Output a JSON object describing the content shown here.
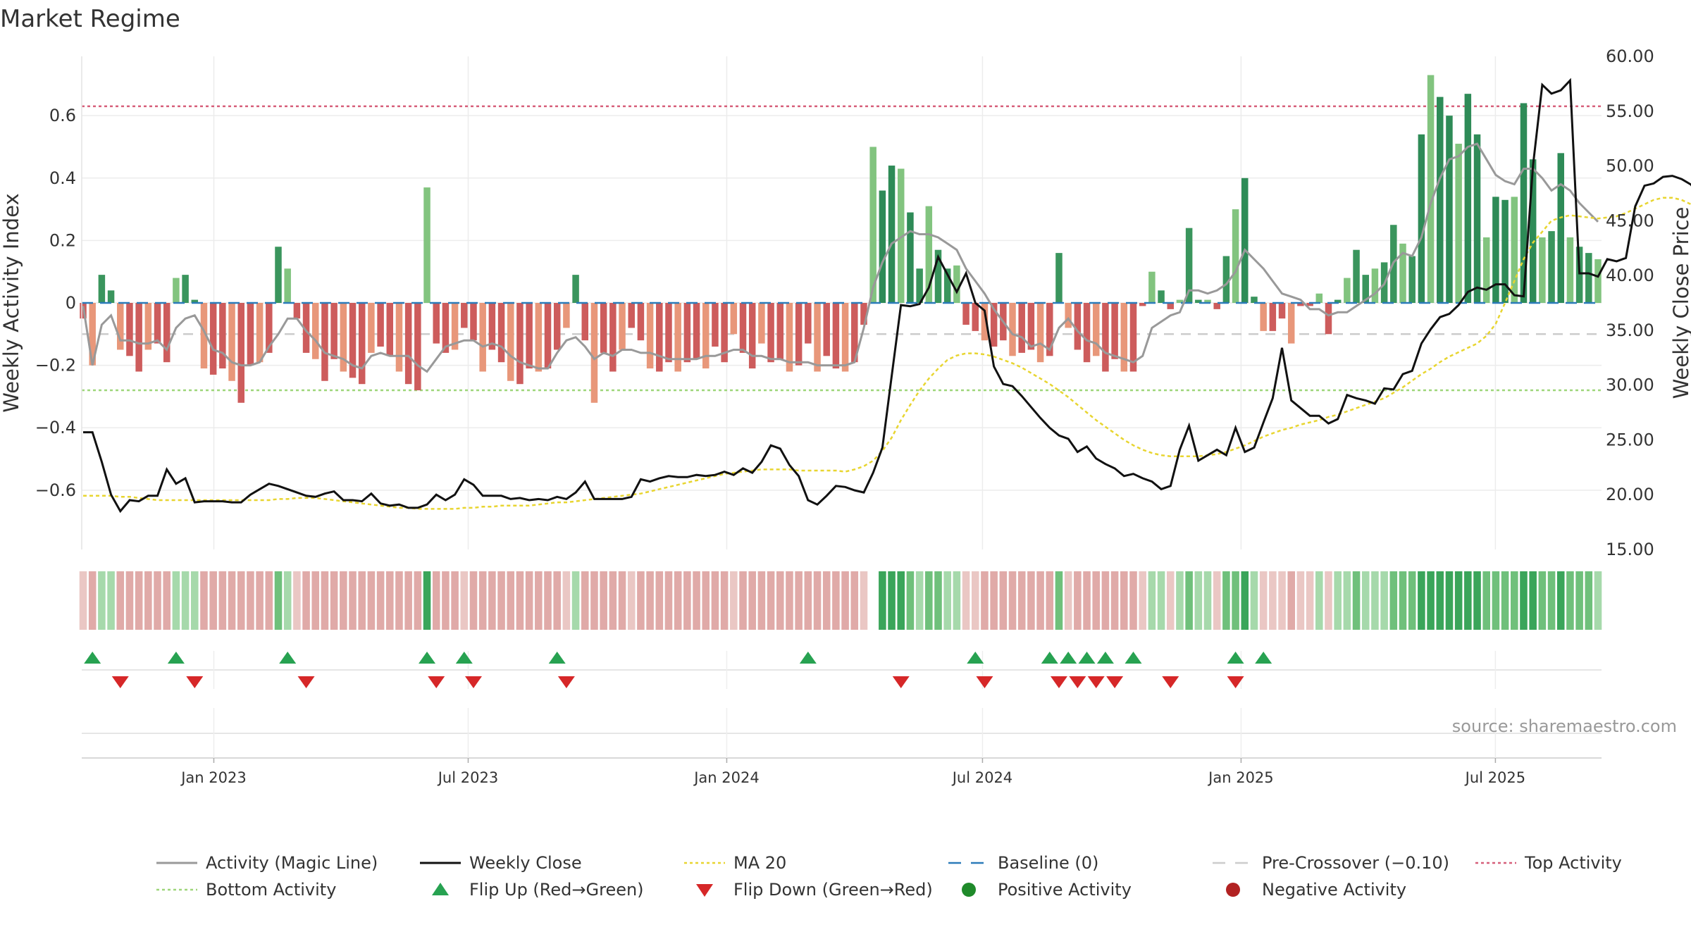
{
  "chart_data": {
    "type": "bar",
    "title": "Market Regime",
    "ylabel_left": "Weekly Activity Index",
    "ylabel_right": "Weekly Close Price",
    "ylim_left": [
      -0.79,
      0.79
    ],
    "ylim_right": [
      15,
      60
    ],
    "left_ticks": [
      -0.6,
      -0.4,
      -0.2,
      0,
      0.2,
      0.4,
      0.6
    ],
    "left_tick_labels": [
      "−0.6",
      "−0.4",
      "−0.2",
      "0",
      "0.2",
      "0.4",
      "0.6"
    ],
    "right_ticks": [
      15,
      20,
      25,
      30,
      35,
      40,
      45,
      50,
      55,
      60
    ],
    "right_tick_labels": [
      "15.00",
      "20.00",
      "25.00",
      "30.00",
      "35.00",
      "40.00",
      "45.00",
      "50.00",
      "55.00",
      "60.00"
    ],
    "x_ticks": [
      "2023-01-01",
      "2023-07-01",
      "2024-01-01",
      "2024-07-01",
      "2025-01-01",
      "2025-07-01"
    ],
    "x_tick_labels": [
      "Jan 2023",
      "Jul 2023",
      "Jan 2024",
      "Jul 2024",
      "Jan 2025",
      "Jul 2025"
    ],
    "x_range": [
      "2022-09-30",
      "2025-09-13"
    ],
    "levels": {
      "baseline": 0,
      "pre_crossover": -0.1,
      "top_activity": 0.63,
      "bottom_activity": -0.28
    },
    "grid": true,
    "legend_position": "bottom",
    "legend": [
      {
        "label": "Activity (Magic Line)",
        "kind": "line",
        "color": "#999999"
      },
      {
        "label": "Weekly Close",
        "kind": "line",
        "color": "#111111"
      },
      {
        "label": "MA 20",
        "kind": "dotted",
        "color": "#e8d530"
      },
      {
        "label": "Baseline (0)",
        "kind": "dashed",
        "color": "#2b7bb9"
      },
      {
        "label": "Pre-Crossover (−0.10)",
        "kind": "dashed",
        "color": "#cccccc"
      },
      {
        "label": "Top Activity",
        "kind": "dotted",
        "color": "#d65f7a"
      },
      {
        "label": "Bottom Activity",
        "kind": "dotted",
        "color": "#9ed67a"
      },
      {
        "label": "Flip Up (Red→Green)",
        "kind": "triangle-up",
        "color": "#27a251"
      },
      {
        "label": "Flip Down (Green→Red)",
        "kind": "triangle-down",
        "color": "#d62728"
      },
      {
        "label": "Positive Activity",
        "kind": "dot",
        "color": "#1f8a2a"
      },
      {
        "label": "Negative Activity",
        "kind": "dot",
        "color": "#b22222"
      }
    ],
    "source": "source: sharemaestro.com",
    "series": [
      {
        "name": "Weekly Activity Index",
        "kind": "bar",
        "values": [
          -0.05,
          -0.2,
          0.09,
          0.04,
          -0.15,
          -0.17,
          -0.22,
          -0.15,
          -0.13,
          -0.19,
          0.08,
          0.09,
          0.01,
          -0.21,
          -0.23,
          -0.21,
          -0.25,
          -0.32,
          -0.2,
          -0.19,
          -0.16,
          0.18,
          0.11,
          -0.05,
          -0.16,
          -0.18,
          -0.25,
          -0.18,
          -0.22,
          -0.24,
          -0.26,
          -0.16,
          -0.14,
          -0.17,
          -0.22,
          -0.26,
          -0.28,
          0.37,
          -0.13,
          -0.16,
          -0.15,
          -0.08,
          -0.12,
          -0.22,
          -0.15,
          -0.19,
          -0.25,
          -0.26,
          -0.21,
          -0.22,
          -0.21,
          -0.15,
          -0.08,
          0.09,
          -0.12,
          -0.32,
          -0.16,
          -0.22,
          -0.15,
          -0.08,
          -0.12,
          -0.21,
          -0.22,
          -0.19,
          -0.22,
          -0.19,
          -0.18,
          -0.21,
          -0.14,
          -0.19,
          -0.1,
          -0.16,
          -0.21,
          -0.13,
          -0.19,
          -0.18,
          -0.22,
          -0.2,
          -0.13,
          -0.22,
          -0.17,
          -0.21,
          -0.22,
          -0.19,
          -0.07,
          0.5,
          0.36,
          0.44,
          0.43,
          0.29,
          0.11,
          0.31,
          0.17,
          0.11,
          0.12,
          -0.07,
          -0.09,
          -0.12,
          -0.14,
          -0.12,
          -0.17,
          -0.16,
          -0.15,
          -0.19,
          -0.17,
          0.16,
          -0.08,
          -0.15,
          -0.19,
          -0.17,
          -0.22,
          -0.18,
          -0.22,
          -0.22,
          -0.01,
          0.1,
          0.04,
          -0.02,
          0.01,
          0.24,
          0.01,
          0.01,
          -0.02,
          0.15,
          0.3,
          0.4,
          0.02,
          -0.09,
          -0.09,
          -0.05,
          -0.13,
          -0.01,
          -0.01,
          0.03,
          -0.1,
          0.01,
          0.08,
          0.17,
          0.09,
          0.11,
          0.13,
          0.25,
          0.19,
          0.15,
          0.54,
          0.73,
          0.66,
          0.6,
          0.51,
          0.67,
          0.54,
          0.21,
          0.34,
          0.33,
          0.34,
          0.64,
          0.46,
          0.21,
          0.23,
          0.48,
          0.21,
          0.18,
          0.16,
          0.14
        ]
      },
      {
        "name": "Activity (Magic Line)",
        "kind": "line",
        "values": [
          -0.01,
          -0.2,
          -0.07,
          -0.04,
          -0.12,
          -0.12,
          -0.13,
          -0.13,
          -0.12,
          -0.15,
          -0.08,
          -0.05,
          -0.04,
          -0.09,
          -0.15,
          -0.16,
          -0.19,
          -0.2,
          -0.2,
          -0.19,
          -0.14,
          -0.1,
          -0.05,
          -0.05,
          -0.09,
          -0.12,
          -0.16,
          -0.17,
          -0.18,
          -0.2,
          -0.21,
          -0.17,
          -0.16,
          -0.17,
          -0.17,
          -0.17,
          -0.2,
          -0.22,
          -0.18,
          -0.14,
          -0.13,
          -0.12,
          -0.12,
          -0.14,
          -0.13,
          -0.14,
          -0.17,
          -0.19,
          -0.2,
          -0.21,
          -0.21,
          -0.16,
          -0.12,
          -0.11,
          -0.14,
          -0.18,
          -0.16,
          -0.17,
          -0.15,
          -0.15,
          -0.16,
          -0.16,
          -0.17,
          -0.18,
          -0.18,
          -0.18,
          -0.18,
          -0.17,
          -0.17,
          -0.16,
          -0.15,
          -0.15,
          -0.17,
          -0.17,
          -0.18,
          -0.18,
          -0.19,
          -0.19,
          -0.19,
          -0.2,
          -0.2,
          -0.2,
          -0.2,
          -0.19,
          -0.08,
          0.05,
          0.13,
          0.19,
          0.21,
          0.23,
          0.22,
          0.22,
          0.21,
          0.19,
          0.17,
          0.11,
          0.07,
          0.03,
          -0.02,
          -0.06,
          -0.1,
          -0.11,
          -0.14,
          -0.13,
          -0.15,
          -0.08,
          -0.05,
          -0.09,
          -0.12,
          -0.13,
          -0.16,
          -0.17,
          -0.18,
          -0.19,
          -0.17,
          -0.08,
          -0.06,
          -0.04,
          -0.03,
          0.04,
          0.04,
          0.03,
          0.04,
          0.06,
          0.1,
          0.17,
          0.14,
          0.11,
          0.07,
          0.03,
          0.02,
          0.01,
          -0.02,
          -0.02,
          -0.04,
          -0.03,
          -0.03,
          -0.01,
          0.01,
          0.03,
          0.06,
          0.13,
          0.16,
          0.15,
          0.21,
          0.32,
          0.4,
          0.46,
          0.47,
          0.5,
          0.51,
          0.46,
          0.41,
          0.39,
          0.38,
          0.43,
          0.43,
          0.4,
          0.36,
          0.38,
          0.36,
          0.32,
          0.29,
          0.26
        ]
      },
      {
        "name": "Weekly Close",
        "kind": "line",
        "axis": "right",
        "values": [
          25.7,
          25.7,
          23,
          20,
          18.5,
          19.5,
          19.4,
          19.9,
          19.9,
          22.3,
          21,
          21.5,
          19.3,
          19.4,
          19.4,
          19.4,
          19.3,
          19.3,
          20,
          20.5,
          21,
          20.8,
          20.5,
          20.2,
          19.9,
          19.8,
          20.1,
          20.3,
          19.5,
          19.5,
          19.4,
          20.1,
          19.2,
          19,
          19.1,
          18.8,
          18.8,
          19.1,
          20,
          19.5,
          20,
          21.4,
          20.9,
          19.9,
          19.9,
          19.9,
          19.6,
          19.7,
          19.5,
          19.6,
          19.5,
          19.8,
          19.6,
          20.2,
          21.2,
          19.6,
          19.6,
          19.6,
          19.6,
          19.8,
          21.4,
          21.2,
          21.5,
          21.7,
          21.6,
          21.6,
          21.8,
          21.7,
          21.8,
          22.1,
          21.8,
          22.4,
          22,
          23,
          24.5,
          24.2,
          22.7,
          21.7,
          19.5,
          19.1,
          19.9,
          20.8,
          20.7,
          20.4,
          20.2,
          22,
          24.3,
          30.8,
          37.3,
          37.2,
          37.4,
          38.9,
          41.7,
          40.1,
          38.5,
          40.2,
          37.5,
          36.8,
          31.7,
          30.1,
          29.9,
          29,
          28,
          27,
          26.1,
          25.4,
          25.1,
          23.9,
          24.4,
          23.3,
          22.8,
          22.4,
          21.7,
          21.9,
          21.5,
          21.2,
          20.5,
          20.8,
          24.1,
          26.3,
          23.1,
          23.6,
          24.1,
          23.6,
          26.1,
          23.9,
          24.3,
          26.6,
          28.8,
          33.4,
          28.6,
          27.9,
          27.2,
          27.2,
          26.5,
          26.9,
          29.1,
          28.8,
          28.6,
          28.3,
          29.7,
          29.6,
          31,
          31.3,
          33.8,
          35.1,
          36.2,
          36.5,
          37.3,
          38.5,
          38.9,
          38.7,
          39.2,
          39.2,
          38.2,
          38.1,
          50,
          57.4,
          56.6,
          56.9,
          57.8,
          40.2,
          40.2,
          39.9,
          41.5,
          41.3,
          41.6,
          46.3,
          48.2,
          48.4,
          49,
          49.1,
          48.8,
          48.3,
          47.2,
          46.2,
          44.2,
          45
        ]
      },
      {
        "name": "MA 20",
        "kind": "line",
        "axis": "right",
        "values": [
          19.9,
          19.9,
          19.9,
          19.9,
          19.8,
          19.8,
          19.7,
          19.6,
          19.5,
          19.5,
          19.5,
          19.5,
          19.5,
          19.5,
          19.5,
          19.5,
          19.5,
          19.5,
          19.5,
          19.5,
          19.5,
          19.6,
          19.6,
          19.7,
          19.7,
          19.7,
          19.6,
          19.5,
          19.4,
          19.3,
          19.2,
          19.1,
          19,
          18.9,
          18.8,
          18.8,
          18.7,
          18.7,
          18.7,
          18.7,
          18.7,
          18.8,
          18.8,
          18.9,
          18.9,
          19,
          19,
          19,
          19,
          19.1,
          19.2,
          19.3,
          19.3,
          19.4,
          19.5,
          19.6,
          19.7,
          19.8,
          19.9,
          20,
          20.1,
          20.3,
          20.5,
          20.7,
          20.9,
          21.1,
          21.3,
          21.5,
          21.7,
          21.9,
          22,
          22.1,
          22.2,
          22.3,
          22.3,
          22.3,
          22.3,
          22.2,
          22.2,
          22.2,
          22.2,
          22.2,
          22.1,
          22.3,
          22.6,
          23.1,
          24,
          25.2,
          26.8,
          28.2,
          29.5,
          30.6,
          31.5,
          32.3,
          32.7,
          32.9,
          32.9,
          32.8,
          32.6,
          32.3,
          32,
          31.6,
          31.1,
          30.6,
          30.1,
          29.5,
          28.9,
          28.2,
          27.5,
          26.8,
          26.2,
          25.6,
          25,
          24.5,
          24.1,
          23.8,
          23.6,
          23.5,
          23.5,
          23.5,
          23.5,
          23.6,
          23.7,
          23.9,
          24.2,
          24.5,
          24.9,
          25.3,
          25.6,
          25.9,
          26.1,
          26.4,
          26.6,
          26.8,
          27.1,
          27.3,
          27.6,
          27.9,
          28.2,
          28.5,
          28.8,
          29.3,
          29.8,
          30.4,
          31,
          31.5,
          32.1,
          32.6,
          33,
          33.4,
          33.8,
          34.5,
          35.6,
          37.5,
          39.5,
          41.5,
          43,
          44,
          45,
          45.3,
          45.5,
          45.4,
          45.3,
          45.2,
          45.3,
          45.4,
          45.7,
          46.1,
          46.5,
          46.9,
          47.1,
          47.1,
          46.9,
          46.5
        ]
      }
    ],
    "flip_up_indices": [
      1,
      10,
      22,
      37,
      41,
      51,
      78,
      96,
      104,
      106,
      108,
      110,
      113,
      124,
      127
    ],
    "flip_down_indices": [
      4,
      12,
      24,
      38,
      42,
      52,
      88,
      97,
      105,
      107,
      109,
      111,
      117,
      124
    ]
  }
}
